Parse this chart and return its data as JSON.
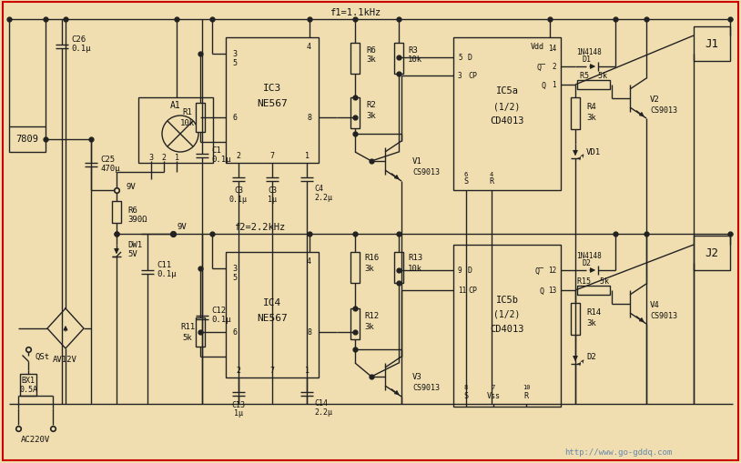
{
  "bg_color": "#f0deb0",
  "border_color": "#cc0000",
  "line_color": "#222222",
  "text_color": "#111111",
  "watermark": "http://www.go-gddq.com",
  "watermark_color": "#6688aa",
  "f1_label": "f1=1.1kHz",
  "f2_label": "f2=2.2kHz"
}
